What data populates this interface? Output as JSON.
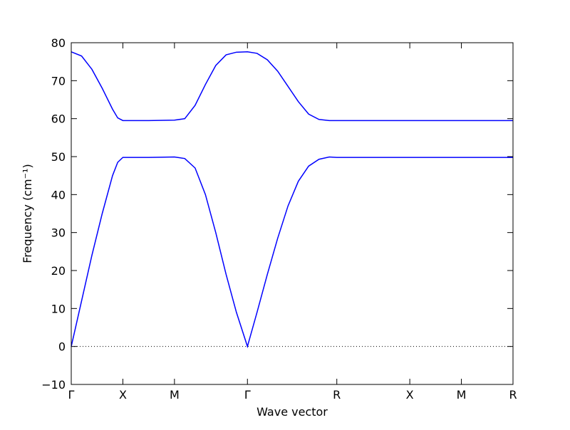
{
  "chart_data": {
    "type": "line",
    "xlabel": "Wave vector",
    "ylabel": "Frequency (cm⁻¹)",
    "x": [
      0,
      0.1,
      0.2,
      0.3,
      0.4,
      0.45,
      0.5,
      0.75,
      1.0,
      1.1,
      1.2,
      1.3,
      1.4,
      1.5,
      1.6,
      1.707,
      1.8,
      1.9,
      2.0,
      2.1,
      2.2,
      2.3,
      2.4,
      2.5,
      2.573,
      3.28,
      3.78,
      4.28
    ],
    "series": [
      {
        "color": "#0000ff",
        "values": [
          0,
          12,
          24,
          35,
          45,
          48.5,
          49.8,
          49.8,
          49.9,
          49.5,
          47,
          40,
          30,
          19,
          9,
          0,
          9,
          19,
          28.5,
          37,
          43.5,
          47.5,
          49.3,
          49.9,
          49.8,
          49.8,
          49.8,
          49.8
        ]
      },
      {
        "color": "#0000ff",
        "values": [
          77.6,
          76.5,
          73,
          68,
          62.5,
          60.2,
          59.5,
          59.5,
          59.6,
          60,
          63.5,
          69,
          74,
          76.8,
          77.5,
          77.6,
          77.2,
          75.5,
          72.5,
          68.5,
          64.5,
          61.2,
          59.8,
          59.5,
          59.5,
          59.5,
          59.5,
          59.5
        ]
      }
    ],
    "xlim": [
      0,
      4.28
    ],
    "xticks": [
      {
        "value": 0,
        "label": "Γ"
      },
      {
        "value": 0.5,
        "label": "X"
      },
      {
        "value": 1.0,
        "label": "M"
      },
      {
        "value": 1.707,
        "label": "Γ"
      },
      {
        "value": 2.573,
        "label": "R"
      },
      {
        "value": 3.28,
        "label": "X"
      },
      {
        "value": 3.78,
        "label": "M"
      },
      {
        "value": 4.28,
        "label": "R"
      }
    ],
    "ylim": [
      -10,
      80
    ],
    "yticks": [
      {
        "value": -10,
        "label": "−10"
      },
      0,
      10,
      20,
      30,
      40,
      50,
      60,
      70,
      80
    ],
    "hlines": [
      0
    ]
  }
}
